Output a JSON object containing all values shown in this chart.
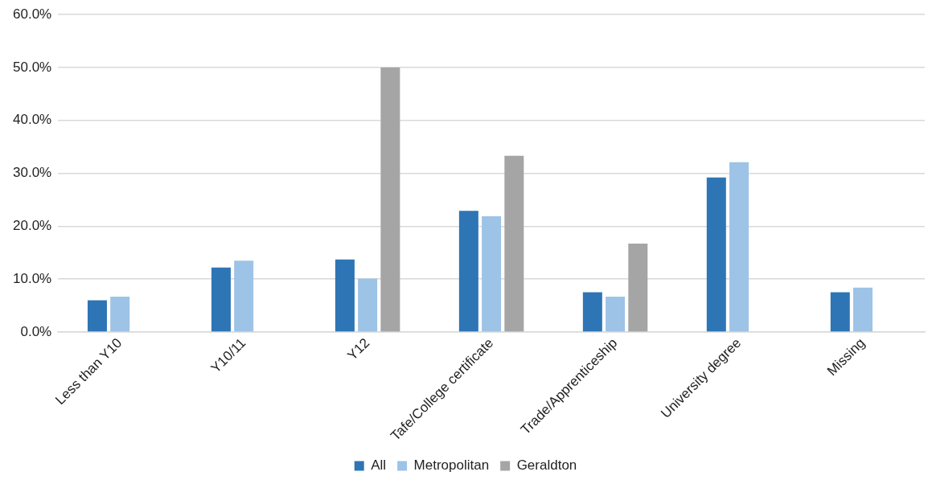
{
  "chart_data": {
    "type": "bar",
    "categories": [
      "Less than Y10",
      "Y10/11",
      "Y12",
      "Tafe/College certificate",
      "Trade/Apprenticeship",
      "University degree",
      "Missing"
    ],
    "series": [
      {
        "name": "All",
        "color": "#2e75b6",
        "values": [
          6.0,
          12.2,
          13.7,
          22.9,
          7.5,
          29.2,
          7.5
        ]
      },
      {
        "name": "Metropolitan",
        "color": "#9dc3e6",
        "values": [
          6.7,
          13.5,
          10.1,
          21.9,
          6.7,
          32.1,
          8.4
        ]
      },
      {
        "name": "Geraldton",
        "color": "#a5a5a5",
        "values": [
          0,
          0,
          50.0,
          33.3,
          16.7,
          0,
          0
        ]
      }
    ],
    "ylim": [
      0,
      60
    ],
    "yticks": [
      {
        "value": 0,
        "label": "0.0%"
      },
      {
        "value": 10,
        "label": "10.0%"
      },
      {
        "value": 20,
        "label": "20.0%"
      },
      {
        "value": 30,
        "label": "30.0%"
      },
      {
        "value": 40,
        "label": "40.0%"
      },
      {
        "value": 50,
        "label": "50.0%"
      },
      {
        "value": 60,
        "label": "60.0%"
      }
    ],
    "grid": "y",
    "legend": "bottom"
  }
}
